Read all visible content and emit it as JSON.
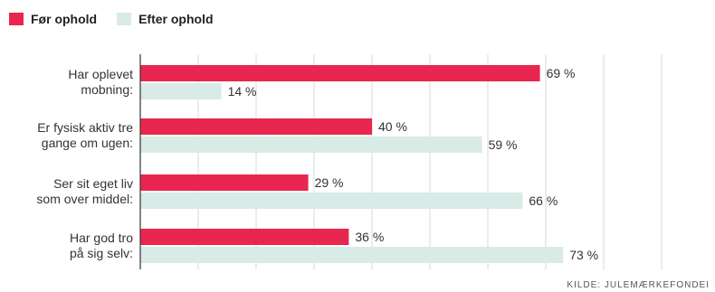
{
  "legend": {
    "items": [
      {
        "label": "Før ophold",
        "color": "#e8264f"
      },
      {
        "label": "Efter ophold",
        "color": "#d8ebe7"
      }
    ]
  },
  "source": "KILDE: JULEMÆRKEFONDEI",
  "chart_data": {
    "type": "bar",
    "orientation": "horizontal",
    "categories": [
      [
        "Har oplevet",
        "mobning:"
      ],
      [
        "Er fysisk aktiv tre",
        "gange om ugen:"
      ],
      [
        "Ser sit eget liv",
        "som over middel:"
      ],
      [
        "Har god tro",
        "på sig selv:"
      ]
    ],
    "series": [
      {
        "name": "Før ophold",
        "color": "#e8264f",
        "values": [
          69,
          40,
          29,
          36
        ]
      },
      {
        "name": "Efter ophold",
        "color": "#d8ebe7",
        "values": [
          14,
          59,
          66,
          73
        ]
      }
    ],
    "unit": " %",
    "xlim": [
      0,
      90
    ],
    "grid": true,
    "legend_position": "top-left"
  }
}
